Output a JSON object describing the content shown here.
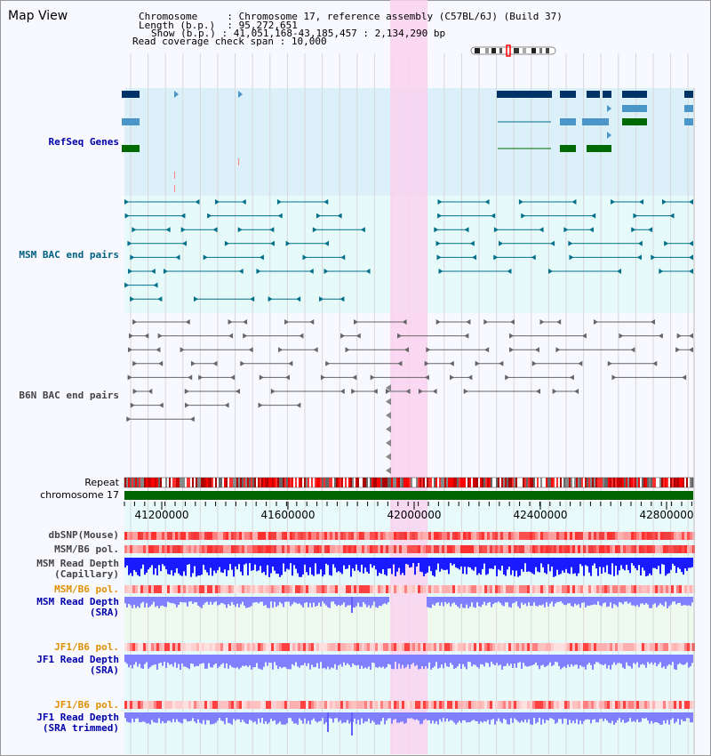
{
  "title": "Map View",
  "info": {
    "chromosome_key": "Chromosome",
    "chromosome_value": "Chromosome 17, reference assembly (C57BL/6J) (Build 37)",
    "length_key": "Length (b.p.)",
    "length_value": "95,272,651",
    "show_key": "Show (b.p.)",
    "show_value": "41,051,168-43,185,457 : 2,134,290 bp",
    "coverage_key": "Read coverage check span",
    "coverage_value": "10,000"
  },
  "tracks": {
    "refseq": "RefSeq Genes",
    "msm_bac": "MSM BAC end pairs",
    "b6n_bac": "B6N BAC end pairs",
    "repeat": "Repeat",
    "chromosome": "chromosome 17",
    "dbsnp": "dbSNP(Mouse)",
    "msm_pol": "MSM/B6 pol.",
    "msm_depth_cap_1": "MSM Read Depth",
    "msm_depth_cap_2": "(Capillary)",
    "msm_pol_sra": "MSM/B6 pol.",
    "msm_depth_sra_1": "MSM Read Depth",
    "msm_depth_sra_2": "(SRA)",
    "jf1_pol": "JF1/B6 pol.",
    "jf1_depth_1": "JF1 Read Depth",
    "jf1_depth_2": "(SRA)",
    "jf1_pol_trim": "JF1/B6 pol.",
    "jf1_trim_1": "JF1 Read Depth",
    "jf1_trim_2": "(SRA trimmed)"
  },
  "axis_ticks": [
    "41200000",
    "41600000",
    "42000000",
    "42400000",
    "42800000"
  ],
  "colors": {
    "refseq_bg": "#dcf0fa",
    "bac_bg": "#e6fafa",
    "highlight": "#fad2f0",
    "chromosome_bar": "#006400",
    "refseq_dark": "#003366",
    "refseq_mid": "#4a96c8",
    "refseq_green": "#006a00",
    "msm_bac_line": "#00708a",
    "b6n_bac_line": "#666666",
    "label_blue": "#0000aa",
    "label_teal": "#006080",
    "label_gray": "#444444",
    "label_orange": "#e09000",
    "depth_blue": "#1a1aff",
    "depth_light": "#8080ff"
  }
}
